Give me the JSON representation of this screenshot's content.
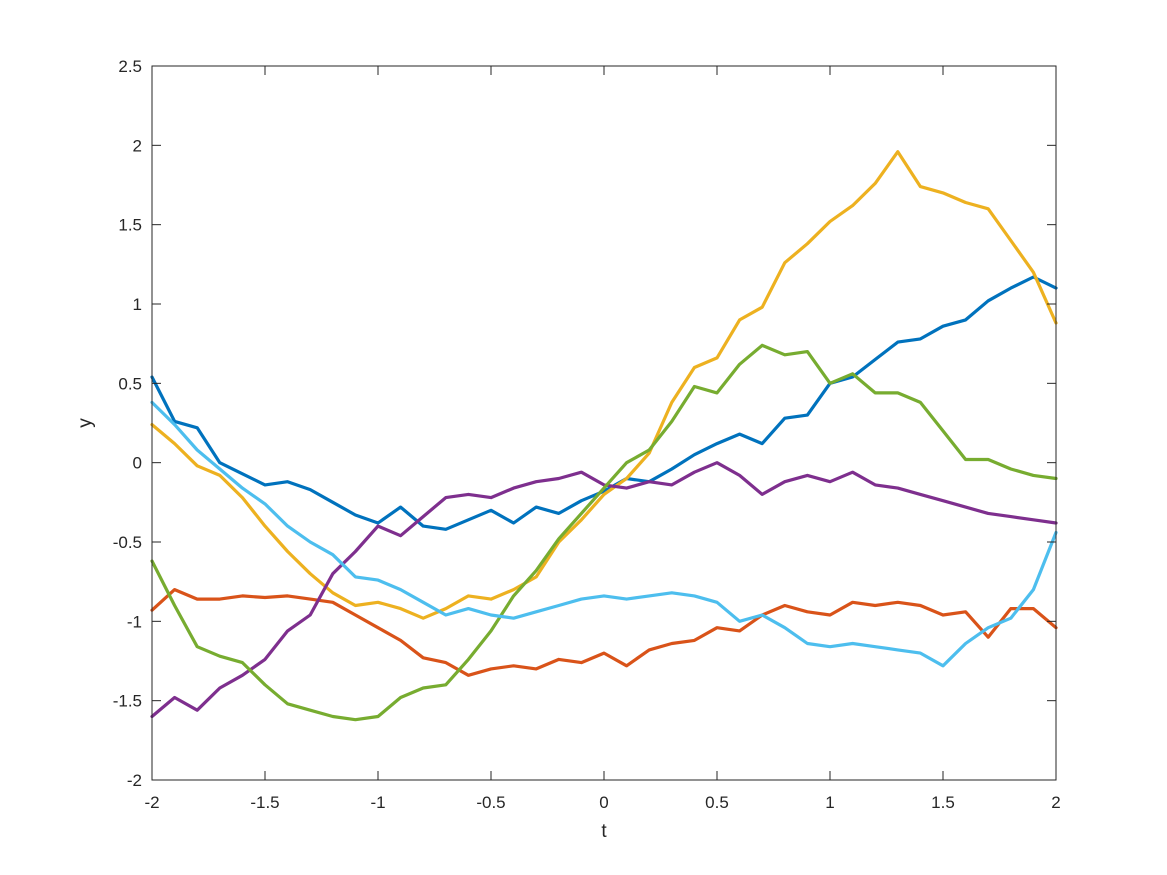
{
  "chart_data": {
    "type": "line",
    "title": "",
    "xlabel": "t",
    "ylabel": "y",
    "xlim": [
      -2,
      2
    ],
    "ylim": [
      -2,
      2.5
    ],
    "xticks": [
      -2,
      -1.5,
      -1,
      -0.5,
      0,
      0.5,
      1,
      1.5,
      2
    ],
    "xtick_labels": [
      "-2",
      "-1.5",
      "-1",
      "-0.5",
      "0",
      "0.5",
      "1",
      "1.5",
      "2"
    ],
    "yticks": [
      -2,
      -1.5,
      -1,
      -0.5,
      0,
      0.5,
      1,
      1.5,
      2,
      2.5
    ],
    "ytick_labels": [
      "-2",
      "-1.5",
      "-1",
      "-0.5",
      "0",
      "0.5",
      "1",
      "1.5",
      "2",
      "2.5"
    ],
    "grid": false,
    "legend": "none",
    "x": [
      -2.0,
      -1.9,
      -1.8,
      -1.7,
      -1.6,
      -1.5,
      -1.4,
      -1.3,
      -1.2,
      -1.1,
      -1.0,
      -0.9,
      -0.8,
      -0.7,
      -0.6,
      -0.5,
      -0.4,
      -0.3,
      -0.2,
      -0.1,
      0.0,
      0.1,
      0.2,
      0.3,
      0.4,
      0.5,
      0.6,
      0.7,
      0.8,
      0.9,
      1.0,
      1.1,
      1.2,
      1.3,
      1.4,
      1.5,
      1.6,
      1.7,
      1.8,
      1.9,
      2.0
    ],
    "series": [
      {
        "color": "#0072BD",
        "values": [
          0.54,
          0.26,
          0.22,
          0.0,
          -0.07,
          -0.14,
          -0.12,
          -0.17,
          -0.25,
          -0.33,
          -0.38,
          -0.28,
          -0.4,
          -0.42,
          -0.36,
          -0.3,
          -0.38,
          -0.28,
          -0.32,
          -0.24,
          -0.18,
          -0.1,
          -0.12,
          -0.04,
          0.05,
          0.12,
          0.18,
          0.12,
          0.28,
          0.3,
          0.5,
          0.54,
          0.65,
          0.76,
          0.78,
          0.86,
          0.9,
          1.02,
          1.1,
          1.17,
          1.1
        ]
      },
      {
        "color": "#D95319",
        "values": [
          -0.93,
          -0.8,
          -0.86,
          -0.86,
          -0.84,
          -0.85,
          -0.84,
          -0.86,
          -0.88,
          -0.96,
          -1.04,
          -1.12,
          -1.23,
          -1.26,
          -1.34,
          -1.3,
          -1.28,
          -1.3,
          -1.24,
          -1.26,
          -1.2,
          -1.28,
          -1.18,
          -1.14,
          -1.12,
          -1.04,
          -1.06,
          -0.96,
          -0.9,
          -0.94,
          -0.96,
          -0.88,
          -0.9,
          -0.88,
          -0.9,
          -0.96,
          -0.94,
          -1.1,
          -0.92,
          -0.92,
          -1.04
        ]
      },
      {
        "color": "#EDB120",
        "values": [
          0.24,
          0.12,
          -0.02,
          -0.08,
          -0.22,
          -0.4,
          -0.56,
          -0.7,
          -0.82,
          -0.9,
          -0.88,
          -0.92,
          -0.98,
          -0.92,
          -0.84,
          -0.86,
          -0.8,
          -0.72,
          -0.5,
          -0.36,
          -0.2,
          -0.1,
          0.06,
          0.38,
          0.6,
          0.66,
          0.9,
          0.98,
          1.26,
          1.38,
          1.52,
          1.62,
          1.76,
          1.96,
          1.74,
          1.7,
          1.64,
          1.6,
          1.4,
          1.2,
          0.88
        ]
      },
      {
        "color": "#7E2F8E",
        "values": [
          -1.6,
          -1.48,
          -1.56,
          -1.42,
          -1.34,
          -1.24,
          -1.06,
          -0.96,
          -0.7,
          -0.56,
          -0.4,
          -0.46,
          -0.34,
          -0.22,
          -0.2,
          -0.22,
          -0.16,
          -0.12,
          -0.1,
          -0.06,
          -0.14,
          -0.16,
          -0.12,
          -0.14,
          -0.06,
          0.0,
          -0.08,
          -0.2,
          -0.12,
          -0.08,
          -0.12,
          -0.06,
          -0.14,
          -0.16,
          -0.2,
          -0.24,
          -0.28,
          -0.32,
          -0.34,
          -0.36,
          -0.38
        ]
      },
      {
        "color": "#77AC30",
        "values": [
          -0.62,
          -0.9,
          -1.16,
          -1.22,
          -1.26,
          -1.4,
          -1.52,
          -1.56,
          -1.6,
          -1.62,
          -1.6,
          -1.48,
          -1.42,
          -1.4,
          -1.24,
          -1.06,
          -0.84,
          -0.68,
          -0.48,
          -0.32,
          -0.16,
          0.0,
          0.08,
          0.26,
          0.48,
          0.44,
          0.62,
          0.74,
          0.68,
          0.7,
          0.5,
          0.56,
          0.44,
          0.44,
          0.38,
          0.2,
          0.02,
          0.02,
          -0.04,
          -0.08,
          -0.1
        ]
      },
      {
        "color": "#4DBEEE",
        "values": [
          0.38,
          0.24,
          0.08,
          -0.04,
          -0.16,
          -0.26,
          -0.4,
          -0.5,
          -0.58,
          -0.72,
          -0.74,
          -0.8,
          -0.88,
          -0.96,
          -0.92,
          -0.96,
          -0.98,
          -0.94,
          -0.9,
          -0.86,
          -0.84,
          -0.86,
          -0.84,
          -0.82,
          -0.84,
          -0.88,
          -1.0,
          -0.96,
          -1.04,
          -1.14,
          -1.16,
          -1.14,
          -1.16,
          -1.18,
          -1.2,
          -1.28,
          -1.14,
          -1.04,
          -0.98,
          -0.8,
          -0.44
        ]
      }
    ]
  }
}
